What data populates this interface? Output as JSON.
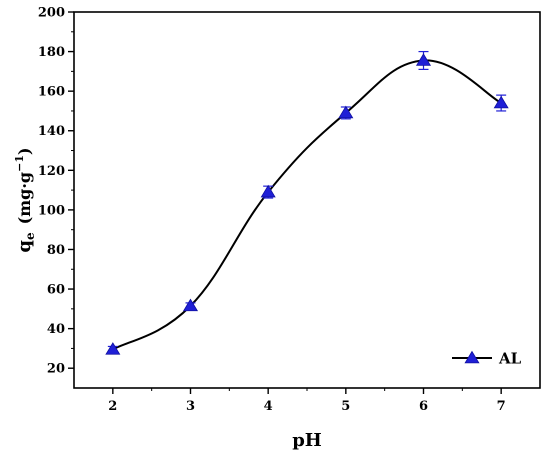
{
  "chart_data": {
    "type": "line",
    "xlabel": "pH",
    "ylabel_main": "q",
    "ylabel_sub": "e",
    "ylabel_unit": "(mg·g",
    "ylabel_sup": "−1",
    "ylabel_close": ")",
    "xlim": [
      1.5,
      7.5
    ],
    "ylim": [
      10,
      200
    ],
    "xticks": [
      2,
      3,
      4,
      5,
      6,
      7
    ],
    "yticks": [
      20,
      40,
      60,
      80,
      100,
      120,
      140,
      160,
      180,
      200
    ],
    "grid": false,
    "legend_position": "bottom-right",
    "series": [
      {
        "name": "AL",
        "color": "#1f1fd6",
        "marker": "triangle-up",
        "x": [
          2,
          3,
          4,
          5,
          6,
          7
        ],
        "y": [
          29.5,
          51.5,
          109,
          149,
          175.5,
          154
        ],
        "error": [
          1.5,
          1.5,
          3,
          3,
          4.5,
          4
        ]
      }
    ]
  }
}
